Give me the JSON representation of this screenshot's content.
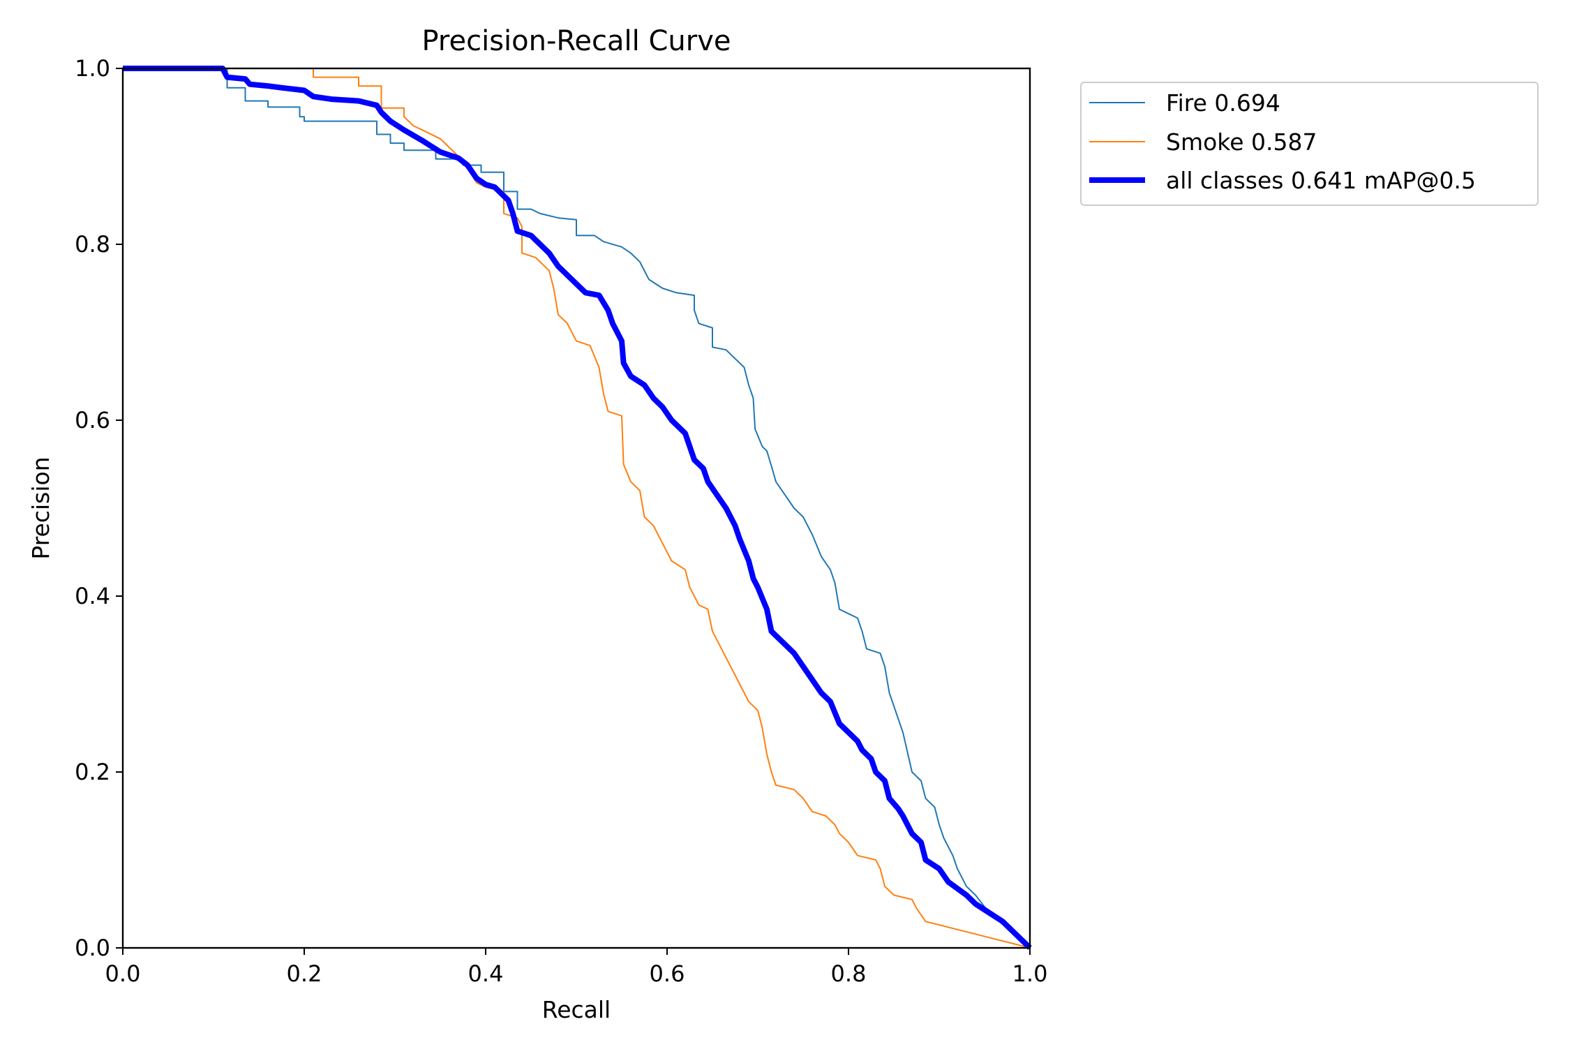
{
  "chart_data": {
    "type": "line",
    "title": "Precision-Recall Curve",
    "xlabel": "Recall",
    "ylabel": "Precision",
    "xlim": [
      0.0,
      1.0
    ],
    "ylim": [
      0.0,
      1.0
    ],
    "xticks": [
      "0.0",
      "0.2",
      "0.4",
      "0.6",
      "0.8",
      "1.0"
    ],
    "yticks": [
      "0.0",
      "0.2",
      "0.4",
      "0.6",
      "0.8",
      "1.0"
    ],
    "grid": false,
    "legend_position": "outside-top-right",
    "series": [
      {
        "name": "Fire",
        "label": "Fire 0.694",
        "ap": 0.694,
        "color": "#1f77b4",
        "points": [
          [
            0.0,
            1.0
          ],
          [
            0.115,
            1.0
          ],
          [
            0.115,
            0.978
          ],
          [
            0.135,
            0.978
          ],
          [
            0.135,
            0.963
          ],
          [
            0.16,
            0.963
          ],
          [
            0.16,
            0.956
          ],
          [
            0.195,
            0.956
          ],
          [
            0.195,
            0.945
          ],
          [
            0.2,
            0.945
          ],
          [
            0.2,
            0.94
          ],
          [
            0.28,
            0.94
          ],
          [
            0.28,
            0.925
          ],
          [
            0.295,
            0.925
          ],
          [
            0.295,
            0.915
          ],
          [
            0.31,
            0.915
          ],
          [
            0.31,
            0.907
          ],
          [
            0.345,
            0.907
          ],
          [
            0.345,
            0.897
          ],
          [
            0.375,
            0.897
          ],
          [
            0.375,
            0.89
          ],
          [
            0.395,
            0.89
          ],
          [
            0.395,
            0.882
          ],
          [
            0.42,
            0.882
          ],
          [
            0.42,
            0.86
          ],
          [
            0.435,
            0.86
          ],
          [
            0.435,
            0.84
          ],
          [
            0.45,
            0.84
          ],
          [
            0.46,
            0.835
          ],
          [
            0.48,
            0.83
          ],
          [
            0.5,
            0.828
          ],
          [
            0.5,
            0.81
          ],
          [
            0.52,
            0.81
          ],
          [
            0.53,
            0.803
          ],
          [
            0.55,
            0.797
          ],
          [
            0.56,
            0.79
          ],
          [
            0.57,
            0.78
          ],
          [
            0.58,
            0.76
          ],
          [
            0.595,
            0.75
          ],
          [
            0.61,
            0.745
          ],
          [
            0.63,
            0.742
          ],
          [
            0.63,
            0.725
          ],
          [
            0.635,
            0.71
          ],
          [
            0.65,
            0.705
          ],
          [
            0.65,
            0.683
          ],
          [
            0.665,
            0.68
          ],
          [
            0.675,
            0.67
          ],
          [
            0.685,
            0.66
          ],
          [
            0.69,
            0.64
          ],
          [
            0.695,
            0.625
          ],
          [
            0.697,
            0.59
          ],
          [
            0.705,
            0.57
          ],
          [
            0.71,
            0.565
          ],
          [
            0.715,
            0.548
          ],
          [
            0.72,
            0.53
          ],
          [
            0.73,
            0.515
          ],
          [
            0.74,
            0.5
          ],
          [
            0.75,
            0.49
          ],
          [
            0.76,
            0.47
          ],
          [
            0.77,
            0.445
          ],
          [
            0.78,
            0.43
          ],
          [
            0.785,
            0.415
          ],
          [
            0.79,
            0.385
          ],
          [
            0.8,
            0.38
          ],
          [
            0.81,
            0.375
          ],
          [
            0.815,
            0.36
          ],
          [
            0.82,
            0.34
          ],
          [
            0.835,
            0.335
          ],
          [
            0.84,
            0.32
          ],
          [
            0.845,
            0.29
          ],
          [
            0.855,
            0.26
          ],
          [
            0.86,
            0.245
          ],
          [
            0.87,
            0.2
          ],
          [
            0.88,
            0.19
          ],
          [
            0.885,
            0.17
          ],
          [
            0.895,
            0.16
          ],
          [
            0.9,
            0.14
          ],
          [
            0.905,
            0.125
          ],
          [
            0.915,
            0.105
          ],
          [
            0.92,
            0.09
          ],
          [
            0.93,
            0.07
          ],
          [
            0.94,
            0.06
          ],
          [
            0.955,
            0.04
          ],
          [
            1.0,
            0.0
          ]
        ]
      },
      {
        "name": "Smoke",
        "label": "Smoke 0.587",
        "ap": 0.587,
        "color": "#ff7f0e",
        "points": [
          [
            0.0,
            1.0
          ],
          [
            0.21,
            1.0
          ],
          [
            0.21,
            0.99
          ],
          [
            0.26,
            0.99
          ],
          [
            0.26,
            0.98
          ],
          [
            0.285,
            0.98
          ],
          [
            0.285,
            0.955
          ],
          [
            0.31,
            0.955
          ],
          [
            0.31,
            0.945
          ],
          [
            0.32,
            0.935
          ],
          [
            0.33,
            0.93
          ],
          [
            0.35,
            0.92
          ],
          [
            0.36,
            0.91
          ],
          [
            0.375,
            0.895
          ],
          [
            0.39,
            0.87
          ],
          [
            0.4,
            0.865
          ],
          [
            0.42,
            0.86
          ],
          [
            0.42,
            0.835
          ],
          [
            0.435,
            0.83
          ],
          [
            0.44,
            0.82
          ],
          [
            0.44,
            0.79
          ],
          [
            0.455,
            0.785
          ],
          [
            0.47,
            0.77
          ],
          [
            0.475,
            0.75
          ],
          [
            0.48,
            0.72
          ],
          [
            0.49,
            0.71
          ],
          [
            0.5,
            0.69
          ],
          [
            0.515,
            0.685
          ],
          [
            0.525,
            0.66
          ],
          [
            0.53,
            0.63
          ],
          [
            0.535,
            0.61
          ],
          [
            0.55,
            0.605
          ],
          [
            0.552,
            0.55
          ],
          [
            0.56,
            0.53
          ],
          [
            0.57,
            0.52
          ],
          [
            0.575,
            0.49
          ],
          [
            0.585,
            0.48
          ],
          [
            0.595,
            0.46
          ],
          [
            0.605,
            0.44
          ],
          [
            0.62,
            0.43
          ],
          [
            0.625,
            0.41
          ],
          [
            0.635,
            0.39
          ],
          [
            0.645,
            0.385
          ],
          [
            0.65,
            0.36
          ],
          [
            0.66,
            0.34
          ],
          [
            0.67,
            0.32
          ],
          [
            0.68,
            0.3
          ],
          [
            0.69,
            0.28
          ],
          [
            0.7,
            0.27
          ],
          [
            0.705,
            0.25
          ],
          [
            0.71,
            0.22
          ],
          [
            0.715,
            0.2
          ],
          [
            0.72,
            0.185
          ],
          [
            0.74,
            0.18
          ],
          [
            0.75,
            0.17
          ],
          [
            0.76,
            0.155
          ],
          [
            0.775,
            0.15
          ],
          [
            0.785,
            0.14
          ],
          [
            0.79,
            0.13
          ],
          [
            0.8,
            0.12
          ],
          [
            0.81,
            0.105
          ],
          [
            0.83,
            0.1
          ],
          [
            0.835,
            0.09
          ],
          [
            0.84,
            0.07
          ],
          [
            0.85,
            0.06
          ],
          [
            0.87,
            0.055
          ],
          [
            0.875,
            0.045
          ],
          [
            0.885,
            0.03
          ],
          [
            1.0,
            0.0
          ]
        ]
      },
      {
        "name": "all classes",
        "label": "all classes 0.641 mAP@0.5",
        "ap": 0.641,
        "color": "#0000ff",
        "points": [
          [
            0.0,
            1.0
          ],
          [
            0.11,
            1.0
          ],
          [
            0.115,
            0.99
          ],
          [
            0.135,
            0.988
          ],
          [
            0.14,
            0.982
          ],
          [
            0.16,
            0.98
          ],
          [
            0.175,
            0.978
          ],
          [
            0.2,
            0.975
          ],
          [
            0.21,
            0.968
          ],
          [
            0.23,
            0.965
          ],
          [
            0.26,
            0.963
          ],
          [
            0.28,
            0.958
          ],
          [
            0.285,
            0.95
          ],
          [
            0.295,
            0.94
          ],
          [
            0.31,
            0.93
          ],
          [
            0.33,
            0.918
          ],
          [
            0.35,
            0.905
          ],
          [
            0.37,
            0.898
          ],
          [
            0.38,
            0.89
          ],
          [
            0.39,
            0.875
          ],
          [
            0.4,
            0.868
          ],
          [
            0.41,
            0.865
          ],
          [
            0.425,
            0.85
          ],
          [
            0.43,
            0.835
          ],
          [
            0.435,
            0.815
          ],
          [
            0.45,
            0.81
          ],
          [
            0.46,
            0.8
          ],
          [
            0.47,
            0.79
          ],
          [
            0.48,
            0.775
          ],
          [
            0.495,
            0.76
          ],
          [
            0.51,
            0.745
          ],
          [
            0.525,
            0.742
          ],
          [
            0.535,
            0.725
          ],
          [
            0.54,
            0.71
          ],
          [
            0.55,
            0.69
          ],
          [
            0.552,
            0.665
          ],
          [
            0.56,
            0.65
          ],
          [
            0.575,
            0.64
          ],
          [
            0.585,
            0.625
          ],
          [
            0.595,
            0.615
          ],
          [
            0.605,
            0.6
          ],
          [
            0.62,
            0.585
          ],
          [
            0.625,
            0.57
          ],
          [
            0.63,
            0.555
          ],
          [
            0.64,
            0.545
          ],
          [
            0.645,
            0.53
          ],
          [
            0.655,
            0.515
          ],
          [
            0.665,
            0.5
          ],
          [
            0.675,
            0.48
          ],
          [
            0.68,
            0.465
          ],
          [
            0.69,
            0.44
          ],
          [
            0.695,
            0.42
          ],
          [
            0.7,
            0.41
          ],
          [
            0.71,
            0.385
          ],
          [
            0.715,
            0.36
          ],
          [
            0.73,
            0.345
          ],
          [
            0.74,
            0.335
          ],
          [
            0.75,
            0.32
          ],
          [
            0.76,
            0.305
          ],
          [
            0.77,
            0.29
          ],
          [
            0.78,
            0.28
          ],
          [
            0.79,
            0.255
          ],
          [
            0.8,
            0.245
          ],
          [
            0.81,
            0.235
          ],
          [
            0.815,
            0.225
          ],
          [
            0.825,
            0.215
          ],
          [
            0.83,
            0.2
          ],
          [
            0.84,
            0.19
          ],
          [
            0.845,
            0.17
          ],
          [
            0.855,
            0.158
          ],
          [
            0.86,
            0.15
          ],
          [
            0.87,
            0.13
          ],
          [
            0.88,
            0.12
          ],
          [
            0.885,
            0.1
          ],
          [
            0.9,
            0.09
          ],
          [
            0.91,
            0.075
          ],
          [
            0.93,
            0.06
          ],
          [
            0.94,
            0.05
          ],
          [
            0.955,
            0.04
          ],
          [
            0.97,
            0.03
          ],
          [
            0.985,
            0.015
          ],
          [
            1.0,
            0.0
          ]
        ]
      }
    ]
  }
}
